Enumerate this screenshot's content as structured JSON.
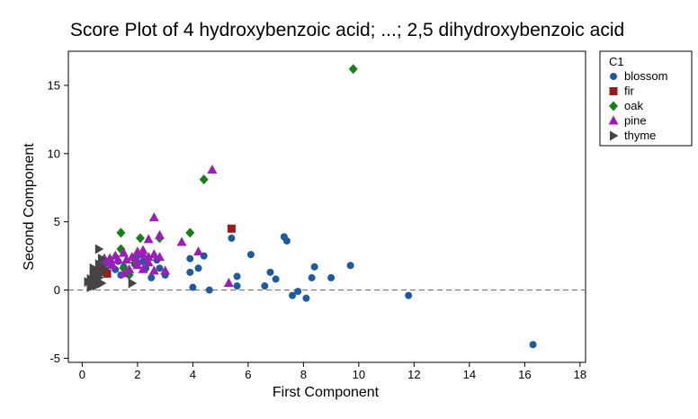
{
  "chart_data": {
    "type": "scatter",
    "title": "Score Plot of 4 hydroxybenzoic acid; ...; 2,5 dihydroxybenzoic acid",
    "xlabel": "First Component",
    "ylabel": "Second Component",
    "xlim": [
      -0.5,
      18.2
    ],
    "ylim": [
      -5.3,
      17.5
    ],
    "xticks": [
      0,
      2,
      4,
      6,
      8,
      10,
      12,
      14,
      16,
      18
    ],
    "yticks": [
      -5,
      0,
      5,
      10,
      15
    ],
    "reference_line_y": 0,
    "grid": false,
    "legend": {
      "title": "C1",
      "placement": "right"
    },
    "series": [
      {
        "name": "blossom",
        "marker": "circle",
        "color": "#1f5a9e",
        "points": [
          [
            16.3,
            -4.0
          ],
          [
            11.8,
            -0.4
          ],
          [
            9.7,
            1.8
          ],
          [
            9.0,
            0.9
          ],
          [
            8.4,
            1.7
          ],
          [
            8.3,
            0.9
          ],
          [
            8.1,
            -0.6
          ],
          [
            7.8,
            -0.1
          ],
          [
            7.6,
            -0.4
          ],
          [
            7.4,
            3.6
          ],
          [
            7.3,
            3.9
          ],
          [
            7.0,
            0.8
          ],
          [
            6.8,
            1.3
          ],
          [
            6.6,
            0.3
          ],
          [
            6.1,
            2.6
          ],
          [
            5.6,
            1.0
          ],
          [
            5.6,
            0.3
          ],
          [
            5.4,
            3.8
          ],
          [
            4.6,
            0.0
          ],
          [
            4.4,
            2.5
          ],
          [
            4.2,
            1.6
          ],
          [
            4.0,
            0.2
          ],
          [
            3.9,
            2.3
          ],
          [
            3.9,
            1.3
          ],
          [
            3.0,
            1.1
          ],
          [
            2.8,
            1.6
          ],
          [
            2.7,
            2.2
          ],
          [
            2.5,
            0.9
          ],
          [
            2.3,
            1.6
          ],
          [
            2.2,
            2.1
          ],
          [
            2.0,
            2.5
          ],
          [
            1.9,
            1.9
          ],
          [
            1.7,
            1.3
          ],
          [
            1.5,
            1.7
          ],
          [
            1.4,
            1.1
          ],
          [
            1.3,
            2.1
          ],
          [
            1.2,
            1.5
          ],
          [
            1.0,
            1.9
          ],
          [
            0.9,
            1.3
          ],
          [
            0.8,
            2.0
          ],
          [
            0.6,
            1.5
          ],
          [
            0.5,
            1.1
          ],
          [
            0.4,
            0.8
          ],
          [
            0.3,
            0.6
          ]
        ]
      },
      {
        "name": "fir",
        "marker": "square",
        "color": "#9b1b1b",
        "points": [
          [
            5.4,
            4.5
          ],
          [
            0.9,
            1.2
          ],
          [
            0.7,
            1.4
          ]
        ]
      },
      {
        "name": "oak",
        "marker": "diamond",
        "color": "#1a7f1a",
        "points": [
          [
            9.8,
            16.2
          ],
          [
            4.4,
            8.1
          ],
          [
            3.9,
            4.2
          ],
          [
            1.4,
            4.2
          ],
          [
            1.4,
            3.0
          ],
          [
            2.1,
            3.8
          ],
          [
            2.8,
            3.8
          ],
          [
            1.9,
            2.0
          ],
          [
            1.5,
            1.6
          ],
          [
            1.7,
            1.1
          ]
        ]
      },
      {
        "name": "pine",
        "marker": "triangle",
        "color": "#9b1fb5",
        "points": [
          [
            4.7,
            8.8
          ],
          [
            2.6,
            5.3
          ],
          [
            2.8,
            4.0
          ],
          [
            3.6,
            3.5
          ],
          [
            2.4,
            3.7
          ],
          [
            4.2,
            2.8
          ],
          [
            2.2,
            2.9
          ],
          [
            2.0,
            2.8
          ],
          [
            1.5,
            2.7
          ],
          [
            1.2,
            2.5
          ],
          [
            1.0,
            2.3
          ],
          [
            0.8,
            2.3
          ],
          [
            1.3,
            2.2
          ],
          [
            1.6,
            2.2
          ],
          [
            1.8,
            2.4
          ],
          [
            2.0,
            2.1
          ],
          [
            2.2,
            2.6
          ],
          [
            2.4,
            2.4
          ],
          [
            2.6,
            2.6
          ],
          [
            2.8,
            2.4
          ],
          [
            3.0,
            1.4
          ],
          [
            2.6,
            1.4
          ],
          [
            2.4,
            2.0
          ],
          [
            2.2,
            1.5
          ],
          [
            2.0,
            1.8
          ],
          [
            1.5,
            1.2
          ],
          [
            1.7,
            1.5
          ],
          [
            5.3,
            0.5
          ],
          [
            1.1,
            1.8
          ],
          [
            0.9,
            2.0
          ]
        ]
      },
      {
        "name": "thyme",
        "marker": "triangle-right",
        "color": "#444444",
        "points": [
          [
            0.6,
            3.0
          ],
          [
            0.4,
            1.6
          ],
          [
            0.6,
            1.9
          ],
          [
            0.7,
            2.3
          ],
          [
            0.5,
            1.4
          ],
          [
            0.7,
            1.2
          ],
          [
            0.4,
            1.1
          ],
          [
            0.6,
            0.9
          ],
          [
            0.3,
            0.8
          ],
          [
            0.5,
            0.7
          ],
          [
            0.3,
            0.5
          ],
          [
            0.4,
            0.4
          ],
          [
            0.6,
            0.6
          ],
          [
            0.5,
            0.3
          ],
          [
            0.3,
            0.2
          ],
          [
            0.8,
            1.6
          ],
          [
            1.8,
            0.5
          ],
          [
            0.7,
            0.5
          ],
          [
            0.4,
            0.9
          ],
          [
            0.2,
            0.6
          ]
        ]
      }
    ]
  }
}
